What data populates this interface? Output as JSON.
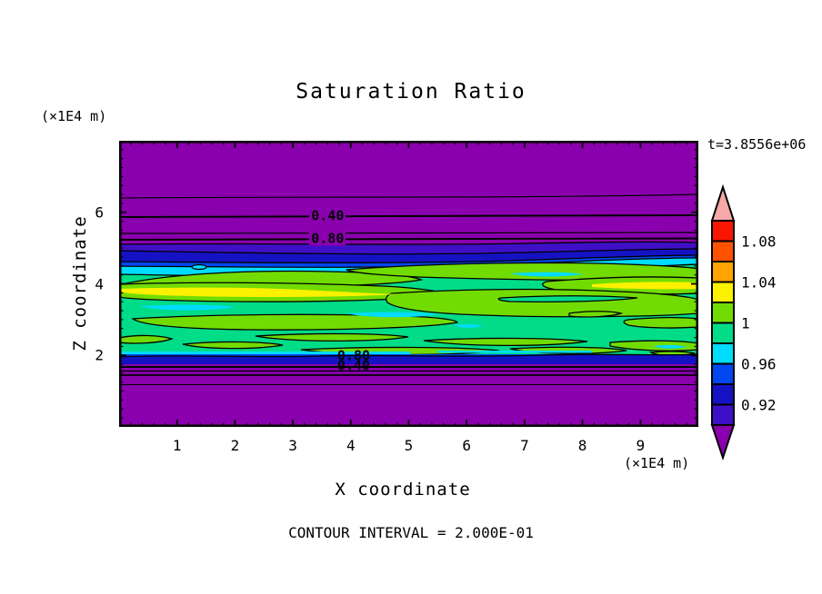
{
  "palette": {
    "purple": "#8A00AE",
    "indigo": "#3F0FC8",
    "navy": "#1512C4",
    "blue": "#0047F0",
    "cyan": "#00DCFC",
    "spring_green": "#00DC87",
    "yellow_green": "#72DC02",
    "yellow": "#FBF100",
    "orange": "#FFA400",
    "orange_red": "#FF5200",
    "red": "#F81600",
    "pink": "#F9A8A8",
    "black": "#000000",
    "background": "#FFFFFF"
  },
  "chart_data": {
    "type": "heatmap",
    "subtype": "filled-contour",
    "title": "Saturation Ratio",
    "xlabel": "X coordinate",
    "ylabel": "Z coordinate",
    "x_units_label": "(×1E4 m)",
    "y_units_label": "(×1E4 m)",
    "time_label": "t=3.8556e+06",
    "contour_interval_label": "CONTOUR INTERVAL = 2.000E-01",
    "contour_interval": 0.2,
    "xlim": [
      0,
      10
    ],
    "ylim": [
      0,
      8
    ],
    "grid": false,
    "x_axis": {
      "tick_values": [
        1,
        2,
        3,
        4,
        5,
        6,
        7,
        8,
        9
      ],
      "tick_labels": [
        "1",
        "2",
        "3",
        "4",
        "5",
        "6",
        "7",
        "8",
        "9"
      ],
      "minor_tick_step": 0.2
    },
    "y_axis": {
      "tick_values": [
        6,
        4,
        2
      ],
      "tick_labels": [
        "6",
        "4",
        "2"
      ],
      "minor_tick_step": 0.25
    },
    "contour_labels": [
      {
        "text": "0.40",
        "x": 3.6,
        "z": 5.89,
        "background": "purple"
      },
      {
        "text": "0.80",
        "x": 3.6,
        "z": 5.26,
        "background": "purple"
      },
      {
        "text": "0.80",
        "x": 4.05,
        "z": 1.98,
        "background": "none"
      },
      {
        "text": "0.40",
        "x": 4.05,
        "z": 1.7,
        "background": "none"
      }
    ],
    "colorbar": {
      "orientation": "vertical",
      "level_boundaries": [
        0.9,
        0.92,
        0.94,
        0.96,
        0.98,
        1.0,
        1.02,
        1.04,
        1.06,
        1.08,
        1.1
      ],
      "box_colors_top_to_bottom": [
        "red",
        "orange_red",
        "orange",
        "yellow",
        "yellow_green",
        "spring_green",
        "cyan",
        "blue",
        "navy",
        "indigo"
      ],
      "over_arrow_color": "pink",
      "under_arrow_color": "purple",
      "labels": [
        {
          "text": "1.08",
          "boundary_index_from_top": 1
        },
        {
          "text": "1.04",
          "boundary_index_from_top": 3
        },
        {
          "text": "1",
          "boundary_index_from_top": 5
        },
        {
          "text": "0.96",
          "boundary_index_from_top": 7
        },
        {
          "text": "0.92",
          "boundary_index_from_top": 9
        }
      ]
    },
    "field_structure": [
      {
        "region": "top layer",
        "z_range": [
          5.5,
          8
        ],
        "x_range": [
          0,
          10
        ],
        "saturation": "below 0.2",
        "fill": "purple"
      },
      {
        "region": "upper transition",
        "z_range": [
          4.55,
          5.5
        ],
        "x_range": [
          0,
          10
        ],
        "saturation": "0.2 to 0.98",
        "contour_lines": [
          0.2,
          0.4,
          0.6,
          0.8
        ],
        "fills": [
          "purple",
          "indigo",
          "navy",
          "blue",
          "cyan"
        ]
      },
      {
        "region": "middle layer",
        "z_range": [
          2.0,
          4.55
        ],
        "x_range": [
          0,
          10
        ],
        "saturation": "0.96 to 1.04",
        "fills": [
          "spring_green",
          "yellow_green",
          "yellow",
          "cyan"
        ],
        "features": [
          "elongated yellow-green blobs bounded by the 1.0 contour line",
          "yellow streaks above 1.02 near z≈3.8 at left (x 0-3.5) and right (x 7.5-10)",
          "thin cyan patches below 0.98",
          "ragged small blobs near z≈2.1"
        ]
      },
      {
        "region": "lower transition",
        "z_range": [
          1.6,
          2.0
        ],
        "x_range": [
          0,
          10
        ],
        "saturation": "0.98 down to 0.2",
        "contour_lines": [
          0.8,
          0.6,
          0.4
        ],
        "fills": [
          "cyan",
          "blue",
          "navy",
          "purple"
        ]
      },
      {
        "region": "bottom layer",
        "z_range": [
          0,
          1.6
        ],
        "x_range": [
          0,
          10
        ],
        "saturation": "below 0.4",
        "fill": "purple",
        "contour_lines": [
          0.2
        ]
      }
    ]
  }
}
